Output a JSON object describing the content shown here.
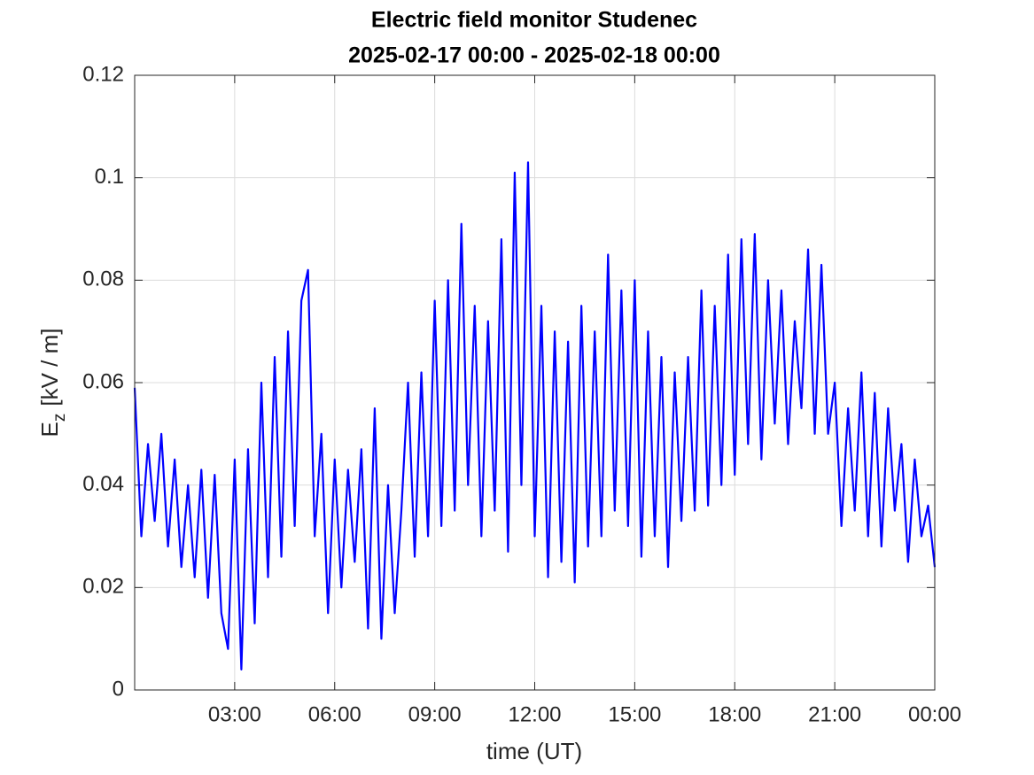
{
  "chart_data": {
    "type": "line",
    "title": [
      "Electric field monitor Studenec",
      "2025-02-17 00:00 - 2025-02-18 00:00"
    ],
    "xlabel": "time (UT)",
    "ylabel": "E",
    "ylabel_subscript": "z",
    "ylabel_unit": "[kV / m]",
    "xlim": [
      0,
      24
    ],
    "ylim": [
      0,
      0.12
    ],
    "xticks": [
      {
        "value": 3,
        "label": "03:00"
      },
      {
        "value": 6,
        "label": "06:00"
      },
      {
        "value": 9,
        "label": "09:00"
      },
      {
        "value": 12,
        "label": "12:00"
      },
      {
        "value": 15,
        "label": "15:00"
      },
      {
        "value": 18,
        "label": "18:00"
      },
      {
        "value": 21,
        "label": "21:00"
      },
      {
        "value": 24,
        "label": "00:00"
      }
    ],
    "yticks": [
      0,
      0.02,
      0.04,
      0.06,
      0.08,
      0.1,
      0.12
    ],
    "grid": true,
    "x": [
      0,
      0.2,
      0.4,
      0.6,
      0.8,
      1,
      1.2,
      1.4,
      1.6,
      1.8,
      2,
      2.2,
      2.4,
      2.6,
      2.8,
      3,
      3.2,
      3.4,
      3.6,
      3.8,
      4,
      4.2,
      4.4,
      4.6,
      4.8,
      5,
      5.2,
      5.4,
      5.6,
      5.8,
      6,
      6.2,
      6.4,
      6.6,
      6.8,
      7,
      7.2,
      7.4,
      7.6,
      7.8,
      8,
      8.2,
      8.4,
      8.6,
      8.8,
      9,
      9.2,
      9.4,
      9.6,
      9.8,
      10,
      10.2,
      10.4,
      10.6,
      10.8,
      11,
      11.2,
      11.4,
      11.6,
      11.8,
      12,
      12.2,
      12.4,
      12.6,
      12.8,
      13,
      13.2,
      13.4,
      13.6,
      13.8,
      14,
      14.2,
      14.4,
      14.6,
      14.8,
      15,
      15.2,
      15.4,
      15.6,
      15.8,
      16,
      16.2,
      16.4,
      16.6,
      16.8,
      17,
      17.2,
      17.4,
      17.6,
      17.8,
      18,
      18.2,
      18.4,
      18.6,
      18.8,
      19,
      19.2,
      19.4,
      19.6,
      19.8,
      20,
      20.2,
      20.4,
      20.6,
      20.8,
      21,
      21.2,
      21.4,
      21.6,
      21.8,
      22,
      22.2,
      22.4,
      22.6,
      22.8,
      23,
      23.2,
      23.4,
      23.6,
      23.8,
      24
    ],
    "series": [
      {
        "color": "#0000ff",
        "values": [
          0.059,
          0.03,
          0.048,
          0.033,
          0.05,
          0.028,
          0.045,
          0.024,
          0.04,
          0.022,
          0.043,
          0.018,
          0.042,
          0.015,
          0.008,
          0.045,
          0.004,
          0.047,
          0.013,
          0.06,
          0.022,
          0.065,
          0.026,
          0.07,
          0.032,
          0.076,
          0.082,
          0.03,
          0.05,
          0.015,
          0.045,
          0.02,
          0.043,
          0.025,
          0.047,
          0.012,
          0.055,
          0.01,
          0.04,
          0.015,
          0.035,
          0.06,
          0.026,
          0.062,
          0.03,
          0.076,
          0.032,
          0.08,
          0.035,
          0.091,
          0.04,
          0.075,
          0.03,
          0.072,
          0.035,
          0.088,
          0.027,
          0.101,
          0.04,
          0.103,
          0.03,
          0.075,
          0.022,
          0.07,
          0.025,
          0.068,
          0.021,
          0.075,
          0.028,
          0.07,
          0.03,
          0.085,
          0.035,
          0.078,
          0.032,
          0.08,
          0.026,
          0.07,
          0.03,
          0.065,
          0.024,
          0.062,
          0.033,
          0.065,
          0.035,
          0.078,
          0.036,
          0.075,
          0.04,
          0.085,
          0.042,
          0.088,
          0.048,
          0.089,
          0.045,
          0.08,
          0.052,
          0.078,
          0.048,
          0.072,
          0.055,
          0.086,
          0.05,
          0.083,
          0.05,
          0.06,
          0.032,
          0.055,
          0.035,
          0.062,
          0.03,
          0.058,
          0.028,
          0.055,
          0.035,
          0.048,
          0.025,
          0.045,
          0.03,
          0.036,
          0.024
        ]
      }
    ]
  }
}
